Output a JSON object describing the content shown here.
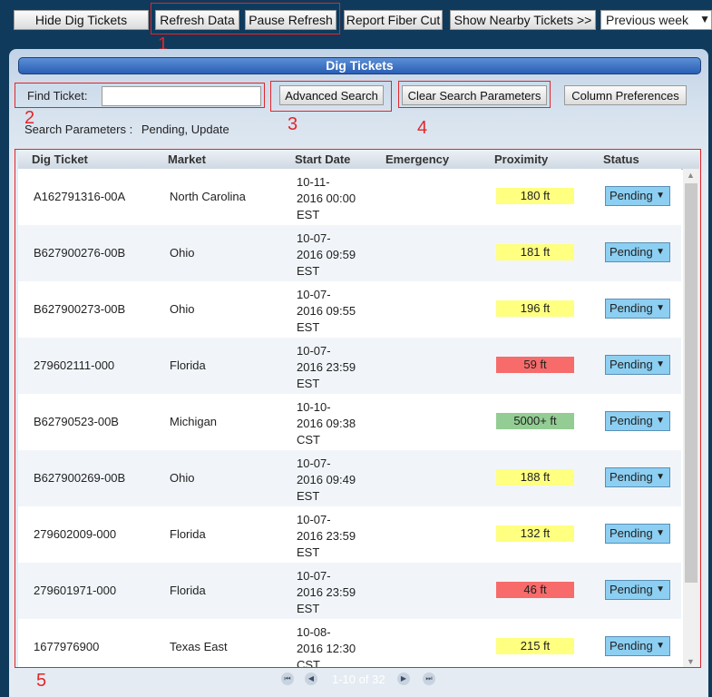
{
  "toolbar": {
    "hide_dig_tickets": "Hide Dig Tickets",
    "refresh_data": "Refresh Data",
    "pause_refresh": "Pause Refresh",
    "report_fiber_cut": "Report Fiber Cut",
    "show_nearby_tickets": "Show Nearby Tickets >>",
    "period_select": "Previous week"
  },
  "markers": [
    "1",
    "2",
    "3",
    "4",
    "5"
  ],
  "panel": {
    "title": "Dig Tickets",
    "find_ticket_label": "Find Ticket:",
    "find_ticket_value": "",
    "advanced_search": "Advanced Search",
    "clear_search": "Clear Search Parameters",
    "column_preferences": "Column Preferences",
    "search_params_label": "Search Parameters :",
    "search_params_value": "Pending, Update"
  },
  "table": {
    "columns": [
      "Dig Ticket",
      "Market",
      "Start Date",
      "Emergency",
      "Proximity",
      "Status"
    ],
    "rows": [
      {
        "ticket": "A162791316-00A",
        "market": "North Carolina",
        "date1": "10-11-",
        "date2": "2016 00:00",
        "date3": "EST",
        "emergency": "",
        "proximity": "180 ft",
        "prox_color": "#ffff80",
        "status": "Pending"
      },
      {
        "ticket": "B627900276-00B",
        "market": "Ohio",
        "date1": "10-07-",
        "date2": "2016 09:59",
        "date3": "EST",
        "emergency": "",
        "proximity": "181 ft",
        "prox_color": "#ffff80",
        "status": "Pending"
      },
      {
        "ticket": "B627900273-00B",
        "market": "Ohio",
        "date1": "10-07-",
        "date2": "2016 09:55",
        "date3": "EST",
        "emergency": "",
        "proximity": "196 ft",
        "prox_color": "#ffff80",
        "status": "Pending"
      },
      {
        "ticket": "279602111-000",
        "market": "Florida",
        "date1": "10-07-",
        "date2": "2016 23:59",
        "date3": "EST",
        "emergency": "",
        "proximity": "59 ft",
        "prox_color": "#f76b6b",
        "status": "Pending"
      },
      {
        "ticket": "B62790523-00B",
        "market": "Michigan",
        "date1": "10-10-",
        "date2": "2016 09:38",
        "date3": "CST",
        "emergency": "",
        "proximity": "5000+ ft",
        "prox_color": "#93cd93",
        "status": "Pending"
      },
      {
        "ticket": "B627900269-00B",
        "market": "Ohio",
        "date1": "10-07-",
        "date2": "2016 09:49",
        "date3": "EST",
        "emergency": "",
        "proximity": "188 ft",
        "prox_color": "#ffff80",
        "status": "Pending"
      },
      {
        "ticket": "279602009-000",
        "market": "Florida",
        "date1": "10-07-",
        "date2": "2016 23:59",
        "date3": "EST",
        "emergency": "",
        "proximity": "132 ft",
        "prox_color": "#ffff80",
        "status": "Pending"
      },
      {
        "ticket": "279601971-000",
        "market": "Florida",
        "date1": "10-07-",
        "date2": "2016 23:59",
        "date3": "EST",
        "emergency": "",
        "proximity": "46 ft",
        "prox_color": "#f76b6b",
        "status": "Pending"
      },
      {
        "ticket": "1677976900",
        "market": "Texas East",
        "date1": "10-08-",
        "date2": "2016 12:30",
        "date3": "CST",
        "emergency": "",
        "proximity": "215 ft",
        "prox_color": "#ffff80",
        "status": "Pending"
      }
    ]
  },
  "pager": {
    "text": "1-10 of 32",
    "icons": [
      "first-page-icon",
      "prev-page-icon",
      "next-page-icon",
      "last-page-icon"
    ]
  },
  "colors": {
    "highlight": "#e2262a",
    "title_bar": "#2a5fb5",
    "status_bg": "#8ccff2"
  }
}
